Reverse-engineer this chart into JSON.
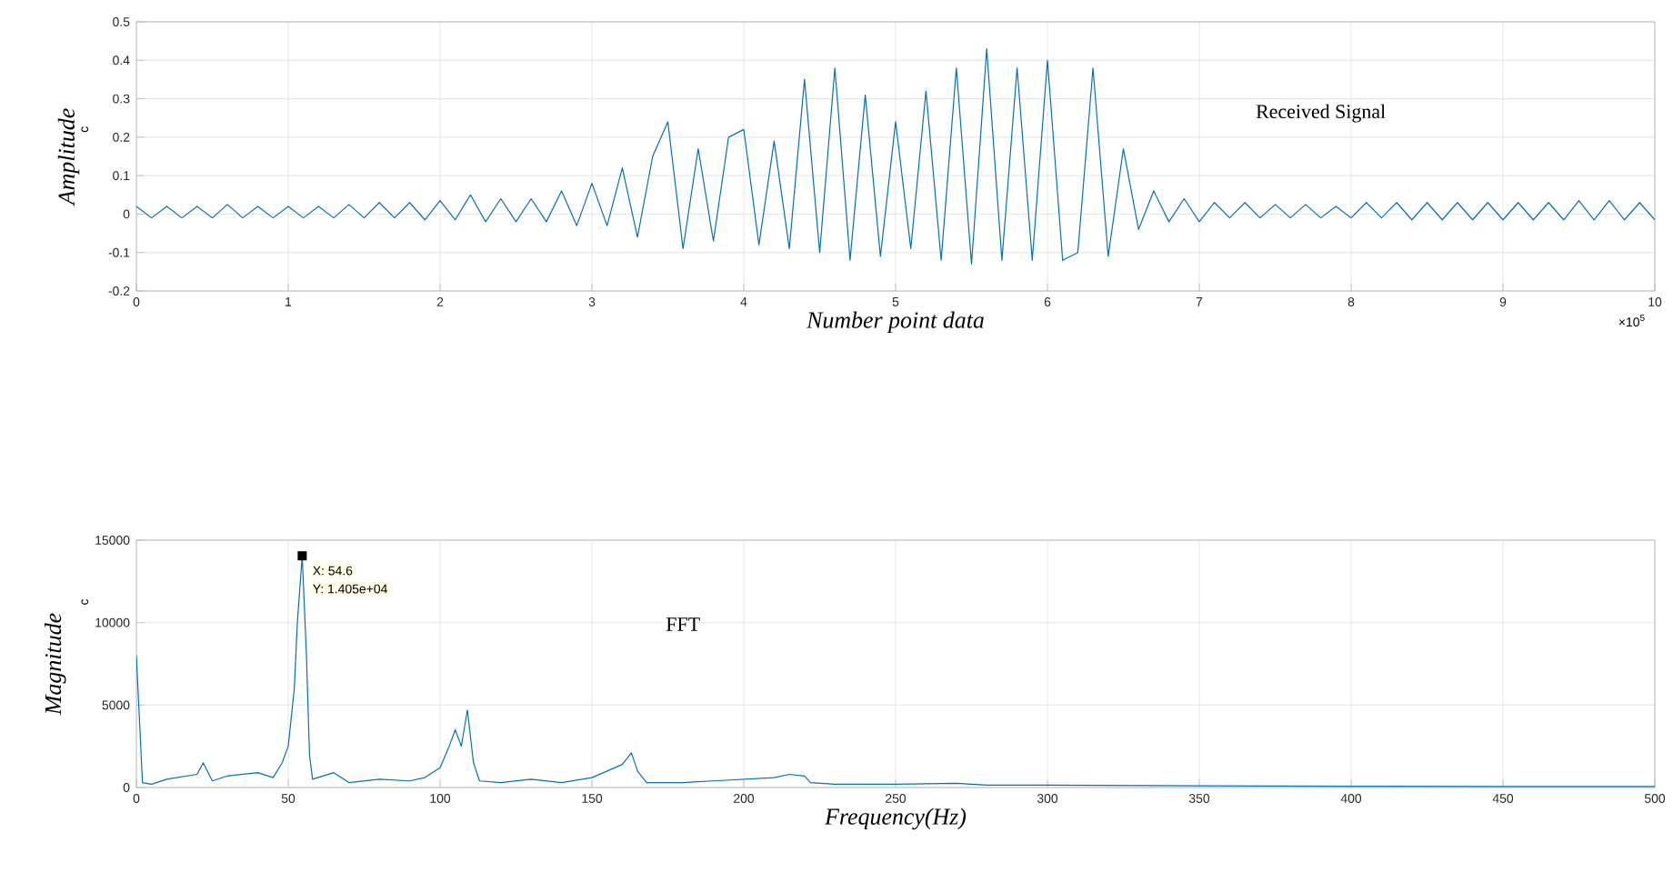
{
  "chart_data": [
    {
      "type": "line",
      "xlabel": "Number point data",
      "ylabel": "Amplitude",
      "xlim": [
        0,
        10
      ],
      "ylim": [
        -0.2,
        0.5
      ],
      "xticks": [
        0,
        1,
        2,
        3,
        4,
        5,
        6,
        7,
        8,
        9,
        10
      ],
      "yticks": [
        -0.2,
        -0.1,
        0,
        0.1,
        0.2,
        0.3,
        0.4,
        0.5
      ],
      "grid": true,
      "annotations": [
        "Received Signal",
        "c",
        "×10$^{5}$"
      ],
      "series": [
        {
          "color": "#0072bd",
          "x": [
            0,
            0.1,
            0.2,
            0.3,
            0.4,
            0.5,
            0.6,
            0.7,
            0.8,
            0.9,
            1,
            1.1,
            1.2,
            1.3,
            1.4,
            1.5,
            1.6,
            1.7,
            1.8,
            1.9,
            2,
            2.1,
            2.2,
            2.3,
            2.4,
            2.5,
            2.6,
            2.7,
            2.8,
            2.9,
            3,
            3.1,
            3.2,
            3.3,
            3.4,
            3.5,
            3.6,
            3.7,
            3.8,
            3.9,
            4,
            4.1,
            4.2,
            4.3,
            4.4,
            4.5,
            4.6,
            4.7,
            4.8,
            4.9,
            5,
            5.1,
            5.2,
            5.3,
            5.4,
            5.5,
            5.6,
            5.7,
            5.8,
            5.9,
            6,
            6.1,
            6.2,
            6.3,
            6.4,
            6.5,
            6.6,
            6.7,
            6.8,
            6.9,
            7,
            7.1,
            7.2,
            7.3,
            7.4,
            7.5,
            7.6,
            7.7,
            7.8,
            7.9,
            8,
            8.1,
            8.2,
            8.3,
            8.4,
            8.5,
            8.6,
            8.7,
            8.8,
            8.9,
            9,
            9.1,
            9.2,
            9.3,
            9.4,
            9.5,
            9.6,
            9.7,
            9.8,
            9.9,
            10
          ],
          "values": [
            0.02,
            -0.01,
            0.02,
            -0.01,
            0.02,
            -0.01,
            0.025,
            -0.01,
            0.02,
            -0.01,
            0.02,
            -0.01,
            0.02,
            -0.01,
            0.025,
            -0.01,
            0.03,
            -0.01,
            0.03,
            -0.015,
            0.035,
            -0.015,
            0.05,
            -0.02,
            0.04,
            -0.02,
            0.04,
            -0.02,
            0.06,
            -0.03,
            0.08,
            -0.03,
            0.12,
            -0.06,
            0.15,
            0.24,
            -0.09,
            0.17,
            -0.07,
            0.2,
            0.22,
            -0.08,
            0.19,
            -0.09,
            0.35,
            -0.1,
            0.38,
            -0.12,
            0.31,
            -0.11,
            0.24,
            -0.09,
            0.32,
            -0.12,
            0.38,
            -0.13,
            0.43,
            -0.12,
            0.38,
            -0.12,
            0.4,
            -0.12,
            -0.1,
            0.38,
            -0.11,
            0.17,
            -0.04,
            0.06,
            -0.02,
            0.04,
            -0.02,
            0.03,
            -0.01,
            0.03,
            -0.01,
            0.025,
            -0.01,
            0.025,
            -0.01,
            0.02,
            -0.01,
            0.03,
            -0.01,
            0.03,
            -0.015,
            0.03,
            -0.015,
            0.03,
            -0.015,
            0.03,
            -0.015,
            0.03,
            -0.015,
            0.03,
            -0.015,
            0.035,
            -0.015,
            0.035,
            -0.015,
            0.03,
            -0.015
          ]
        }
      ]
    },
    {
      "type": "line",
      "xlabel": "Frequency(Hz)",
      "ylabel": "Magnitude",
      "xlim": [
        0,
        500
      ],
      "ylim": [
        0,
        15000
      ],
      "xticks": [
        0,
        50,
        100,
        150,
        200,
        250,
        300,
        350,
        400,
        450,
        500
      ],
      "yticks": [
        0,
        5000,
        10000,
        15000
      ],
      "grid": true,
      "annotations": [
        "FFT",
        "c",
        {
          "text": "X: 54.6",
          "x": 54.6,
          "y": 14050
        },
        {
          "text": "Y: 1.405e+04",
          "x": 54.6,
          "y": 14050
        }
      ],
      "series": [
        {
          "color": "#0072bd",
          "x": [
            0,
            2,
            5,
            10,
            20,
            22,
            25,
            30,
            40,
            45,
            48,
            50,
            52,
            53,
            54.6,
            56,
            57,
            58,
            65,
            70,
            80,
            90,
            95,
            100,
            103,
            105,
            107,
            109,
            111,
            113,
            120,
            130,
            140,
            150,
            155,
            160,
            163,
            165,
            168,
            180,
            190,
            200,
            210,
            215,
            220,
            222,
            230,
            250,
            270,
            280,
            300,
            350,
            400,
            450,
            500
          ],
          "values": [
            8000,
            300,
            200,
            500,
            800,
            1500,
            400,
            700,
            900,
            600,
            1500,
            2500,
            6000,
            10000,
            14050,
            8000,
            2000,
            500,
            900,
            300,
            500,
            400,
            600,
            1200,
            2500,
            3500,
            2500,
            4700,
            1500,
            400,
            300,
            500,
            300,
            600,
            1000,
            1400,
            2100,
            1000,
            300,
            300,
            400,
            500,
            600,
            800,
            700,
            300,
            200,
            200,
            250,
            150,
            150,
            100,
            80,
            60,
            60
          ]
        }
      ]
    }
  ]
}
